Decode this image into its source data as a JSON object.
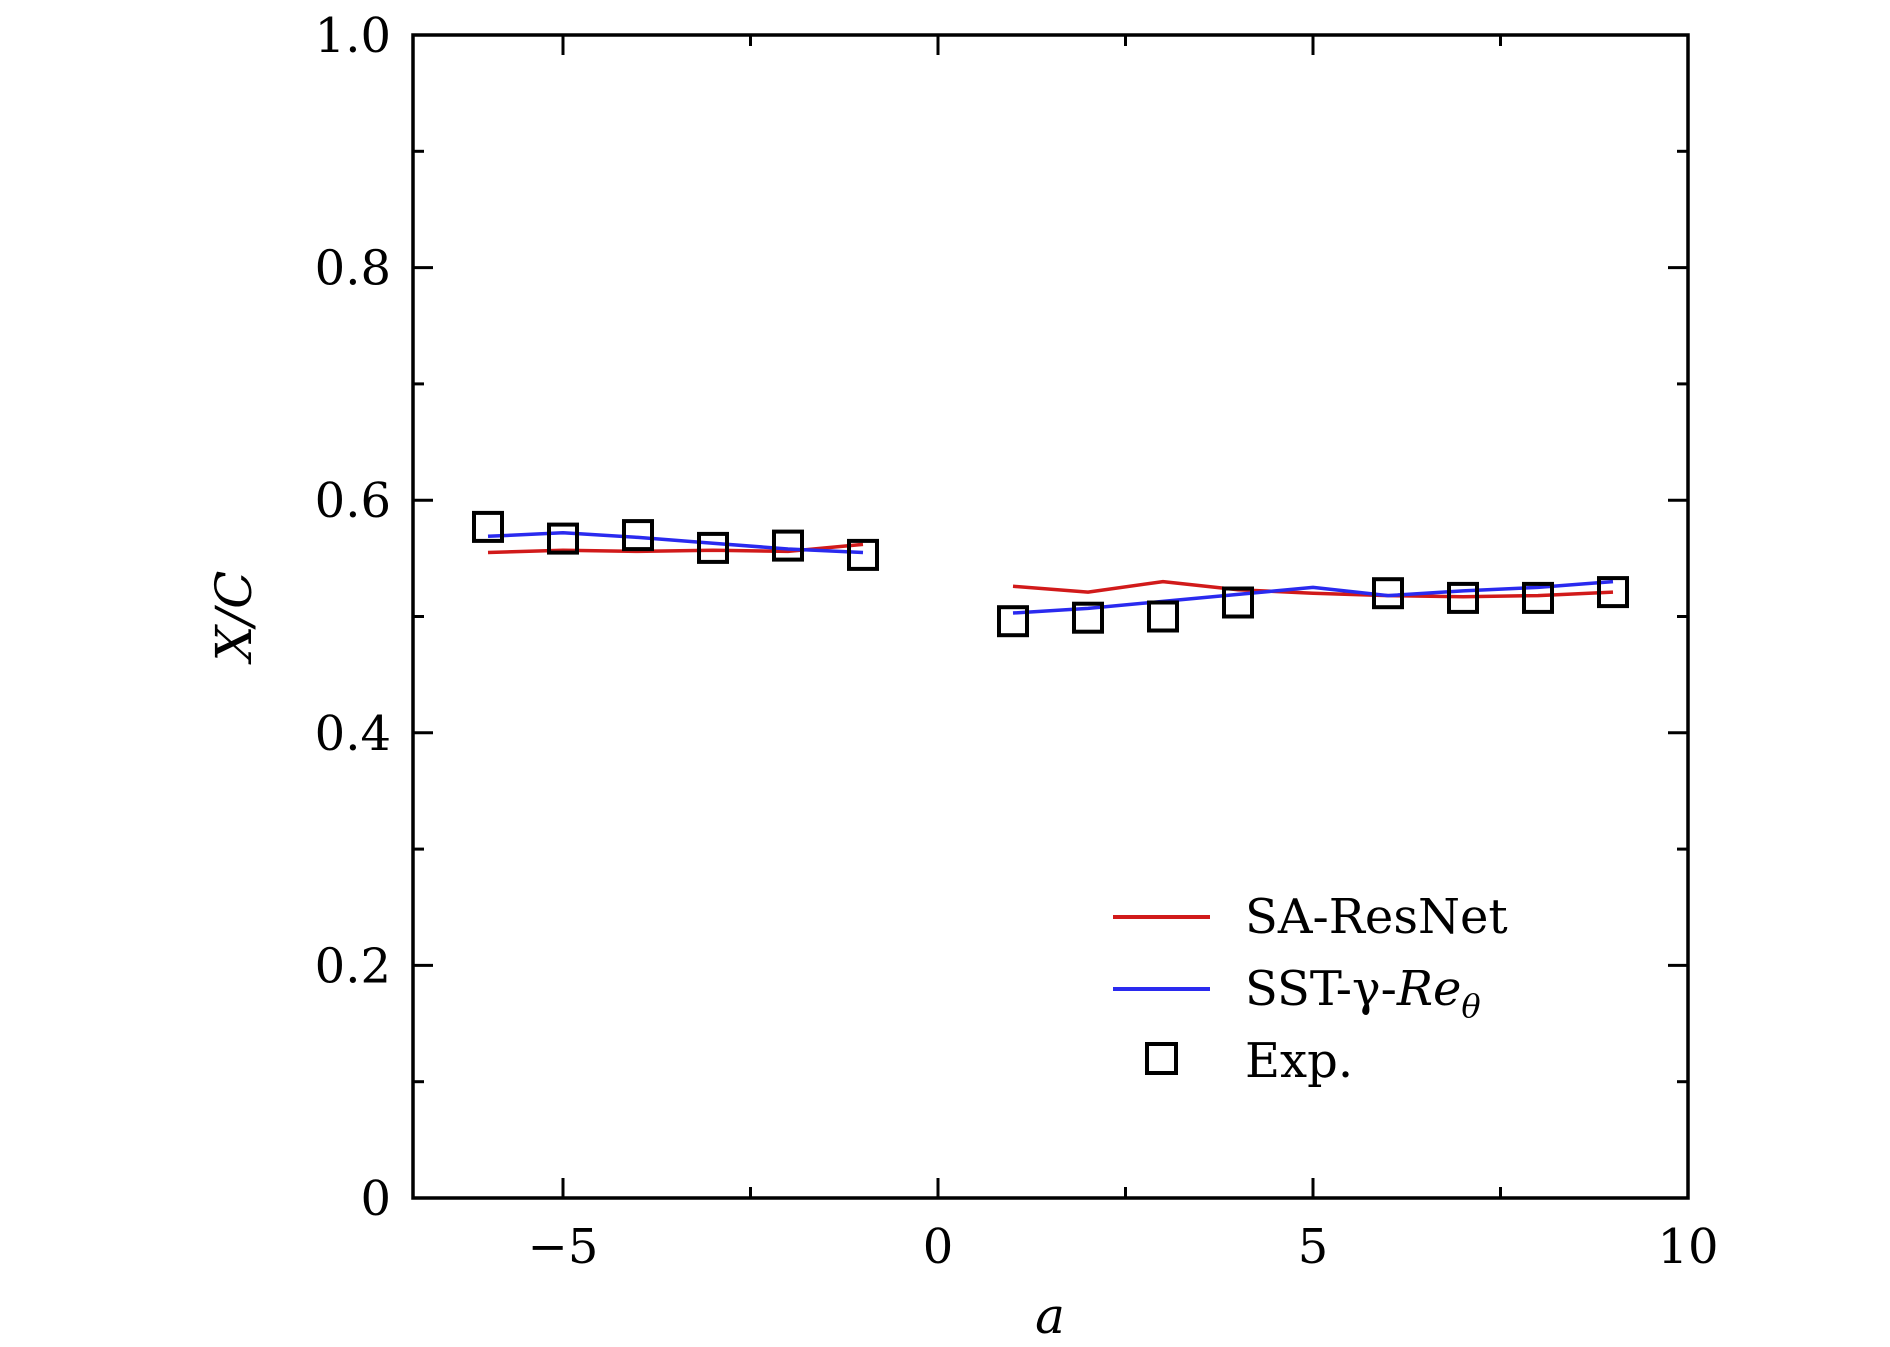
{
  "chart_data": {
    "type": "line",
    "xlabel": "a",
    "ylabel": "X/C",
    "xlim": [
      -7,
      10
    ],
    "ylim": [
      0,
      1.0
    ],
    "xticks": [
      -5,
      0,
      5,
      10
    ],
    "xtick_labels": [
      "−5",
      "0",
      "5",
      "10"
    ],
    "yticks": [
      0,
      0.2,
      0.4,
      0.6,
      0.8,
      1.0
    ],
    "ytick_labels": [
      "0",
      "0.2",
      "0.4",
      "0.6",
      "0.8",
      "1.0"
    ],
    "grid": false,
    "legend_position": "bottom-right",
    "series": [
      {
        "name": "SA-ResNet",
        "kind": "line",
        "color": "#d11a1a",
        "segments": [
          {
            "x": [
              -6,
              -5,
              -4,
              -3,
              -2,
              -1
            ],
            "y": [
              0.555,
              0.557,
              0.556,
              0.557,
              0.556,
              0.562
            ]
          },
          {
            "x": [
              1,
              2,
              3,
              4,
              5,
              6,
              7,
              8,
              9
            ],
            "y": [
              0.526,
              0.521,
              0.53,
              0.523,
              0.52,
              0.518,
              0.517,
              0.518,
              0.521
            ]
          }
        ]
      },
      {
        "name": "SST-γ-Reθ",
        "kind": "line",
        "color": "#2a2aef",
        "segments": [
          {
            "x": [
              -6,
              -5,
              -4,
              -3,
              -2,
              -1
            ],
            "y": [
              0.569,
              0.572,
              0.568,
              0.563,
              0.558,
              0.555
            ]
          },
          {
            "x": [
              1,
              2,
              3,
              4,
              5,
              6,
              7,
              8,
              9
            ],
            "y": [
              0.503,
              0.507,
              0.513,
              0.519,
              0.525,
              0.518,
              0.522,
              0.525,
              0.53
            ]
          }
        ]
      },
      {
        "name": "Exp.",
        "kind": "marker",
        "marker": "square",
        "color": "#000000",
        "x": [
          -6,
          -5,
          -4,
          -3,
          -2,
          -1,
          1,
          2,
          3,
          4,
          6,
          7,
          8,
          9
        ],
        "y": [
          0.577,
          0.567,
          0.57,
          0.559,
          0.561,
          0.553,
          0.496,
          0.499,
          0.5,
          0.512,
          0.52,
          0.516,
          0.516,
          0.521
        ]
      }
    ],
    "legend": {
      "sa_label": "SA-ResNet",
      "sst_prefix": "SST-γ-",
      "sst_re": "Re",
      "sst_sub": "θ",
      "exp_label": "Exp."
    }
  }
}
